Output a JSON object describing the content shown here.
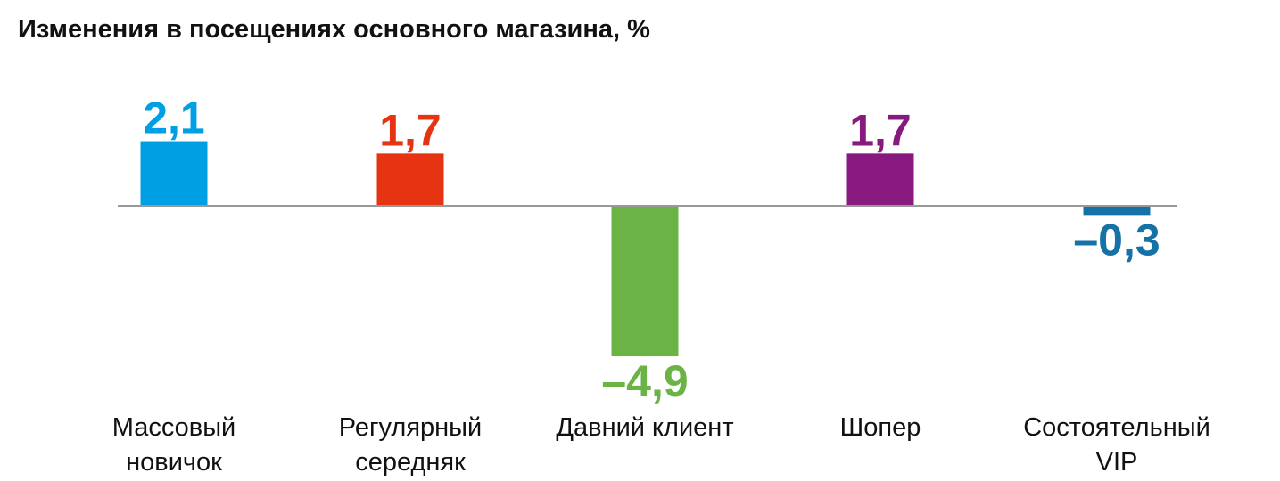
{
  "chart_data": {
    "type": "bar",
    "title": "Изменения в посещениях основного магазина, %",
    "xlabel": "",
    "ylabel": "",
    "ylim": [
      -6,
      2.5
    ],
    "categories": [
      [
        "Массовый",
        "новичок"
      ],
      [
        "Регулярный",
        "середняк"
      ],
      [
        "Давний клиент"
      ],
      [
        "Шопер"
      ],
      [
        "Состоятельный",
        "VIP"
      ]
    ],
    "values": [
      2.1,
      1.7,
      -4.9,
      1.7,
      -0.3
    ],
    "value_labels": [
      "2,1",
      "1,7",
      "–4,9",
      "1,7",
      "–0,3"
    ],
    "colors": [
      "#009fe3",
      "#e63312",
      "#6ab344",
      "#87197f",
      "#1572a7"
    ],
    "grid": false,
    "legend": "none"
  }
}
